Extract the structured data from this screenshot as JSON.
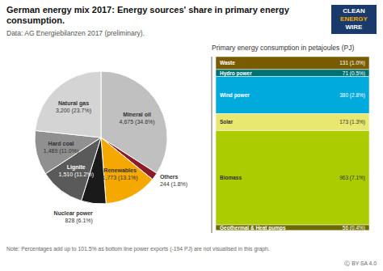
{
  "chart_data": [
    {
      "type": "pie",
      "title": "German energy mix 2017: Energy sources' share in primary energy consumption.",
      "subtitle": "Data: AG Energiebilanzen 2017 (preliminary).",
      "categories": [
        "Mineral oil",
        "Others",
        "Renewables",
        "Nuclear power",
        "Lignite",
        "Hard coal",
        "Natural gas"
      ],
      "values": [
        4675,
        244,
        1773,
        828,
        1510,
        1489,
        3200
      ],
      "value_labels": [
        "4,675 (34.6%)",
        "244 (1.8%)",
        "1,773 (13.1%)",
        "828 (6.1%)",
        "1,510 (11.2%)",
        "1,489 (11.0%)",
        "3,200 (23.7%)"
      ],
      "colors": [
        "#c0c0c0",
        "#8b1a2a",
        "#f5a800",
        "#1a1a1a",
        "#5a5a5a",
        "#909090",
        "#d4d4d4"
      ],
      "annotations": [
        "CLEAN",
        "ENERGY",
        "WIRE",
        "Note: Percentages add up to 101.5% as bottom line power exports (-194 PJ) are not visualised in this graph.",
        "Ⓒ BY SA 4.0"
      ]
    },
    {
      "type": "bar",
      "title": "Primary energy consumption in petajoules (PJ)",
      "stacked": true,
      "series": [
        {
          "name": "Waste",
          "color": "#7a5c00",
          "values": [
            131
          ],
          "value_labels": [
            "131 (1.0%)"
          ]
        },
        {
          "name": "Hydro power",
          "color": "#007070",
          "values": [
            71
          ],
          "value_labels": [
            "71 (0.5%)"
          ]
        },
        {
          "name": "Wind power",
          "color": "#00aadd",
          "values": [
            380
          ],
          "value_labels": [
            "380 (2.8%)"
          ]
        },
        {
          "name": "Solar",
          "color": "#e8e870",
          "values": [
            173
          ],
          "value_labels": [
            "173 (1.3%)"
          ]
        },
        {
          "name": "Biomass",
          "color": "#aacc00",
          "values": [
            963
          ],
          "value_labels": [
            "963 (7.1%)"
          ]
        },
        {
          "name": "Geothermal & Heat pumps",
          "color": "#6b6b00",
          "values": [
            56
          ],
          "value_labels": [
            "56 (0.4%)"
          ]
        }
      ],
      "ylim": [
        0,
        1800
      ],
      "yticks": [
        0,
        1800
      ],
      "tick_labels": false,
      "grid": false
    }
  ]
}
